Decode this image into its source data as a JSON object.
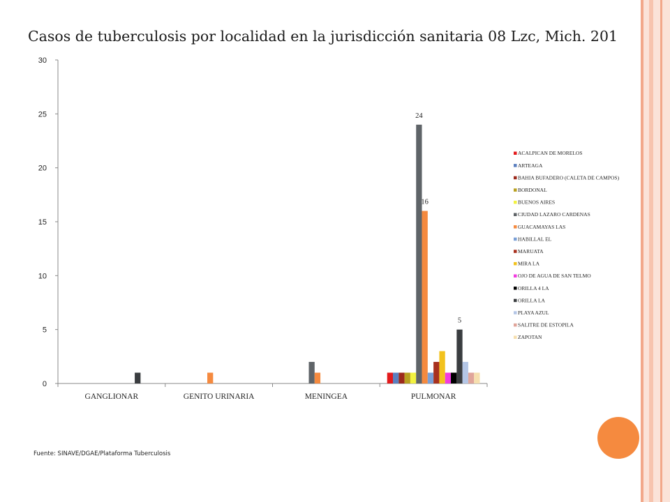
{
  "slide": {
    "title": "Casos de tuberculosis por localidad en la jurisdicción sanitaria 08 Lzc, Mich. 201",
    "source": "Fuente: SINAVE/DGAE/Plataforma Tuberculosis",
    "colors": {
      "accent_circle": "#f58a3f",
      "deco_band": "#f7c4ae",
      "deco_line": "#f2a88a"
    }
  },
  "chart_data": {
    "type": "bar",
    "title": "",
    "xlabel": "",
    "ylabel": "",
    "ylim": [
      0,
      30
    ],
    "yticks": [
      0,
      5,
      10,
      15,
      20,
      25,
      30
    ],
    "grid": false,
    "legend_position": "right",
    "categories": [
      "GANGLIONAR",
      "GENITO URINARIA",
      "MENINGEA",
      "PULMONAR"
    ],
    "series": [
      {
        "name": "ACALPICAN DE MORELOS",
        "color": "#e31a1c",
        "values": [
          0,
          0,
          0,
          1
        ]
      },
      {
        "name": "ARTEAGA",
        "color": "#5b7fbf",
        "values": [
          0,
          0,
          0,
          1
        ]
      },
      {
        "name": "BAHIA BUFADERO (CALETA DE CAMPOS)",
        "color": "#9c2a1c",
        "values": [
          0,
          0,
          0,
          1
        ]
      },
      {
        "name": "BORDONAL",
        "color": "#b8a020",
        "values": [
          0,
          0,
          0,
          1
        ]
      },
      {
        "name": "BUENOS AIRES",
        "color": "#f2f240",
        "values": [
          0,
          0,
          0,
          1
        ]
      },
      {
        "name": "CIUDAD LAZARO CARDENAS",
        "color": "#5f6468",
        "values": [
          0,
          0,
          2,
          24
        ]
      },
      {
        "name": "GUACAMAYAS LAS",
        "color": "#f58a3f",
        "values": [
          0,
          1,
          1,
          16
        ]
      },
      {
        "name": "HABILLAL EL",
        "color": "#7a9fd6",
        "values": [
          0,
          0,
          0,
          1
        ]
      },
      {
        "name": "MARUATA",
        "color": "#a8311f",
        "values": [
          0,
          0,
          0,
          2
        ]
      },
      {
        "name": "MIRA LA",
        "color": "#f2c21d",
        "values": [
          0,
          0,
          0,
          3
        ]
      },
      {
        "name": "OJO DE AGUA DE SAN TELMO",
        "color": "#f23ce0",
        "values": [
          0,
          0,
          0,
          1
        ]
      },
      {
        "name": "ORILLA 4 LA",
        "color": "#000000",
        "values": [
          0,
          0,
          0,
          1
        ]
      },
      {
        "name": "ORILLA LA",
        "color": "#3a3d40",
        "values": [
          1,
          0,
          0,
          5
        ]
      },
      {
        "name": "PLAYA AZUL",
        "color": "#b4c6e6",
        "values": [
          0,
          0,
          0,
          2
        ]
      },
      {
        "name": "SALITRE DE ESTOPILA",
        "color": "#e0a59a",
        "values": [
          0,
          0,
          0,
          1
        ]
      },
      {
        "name": "ZAPOTAN",
        "color": "#f6dfae",
        "values": [
          0,
          0,
          0,
          1
        ]
      }
    ],
    "data_labels": [
      {
        "series": "CIUDAD LAZARO CARDENAS",
        "category": "PULMONAR",
        "text": "24"
      },
      {
        "series": "GUACAMAYAS LAS",
        "category": "PULMONAR",
        "text": "16"
      },
      {
        "series": "ORILLA LA",
        "category": "PULMONAR",
        "text": "5"
      }
    ]
  }
}
